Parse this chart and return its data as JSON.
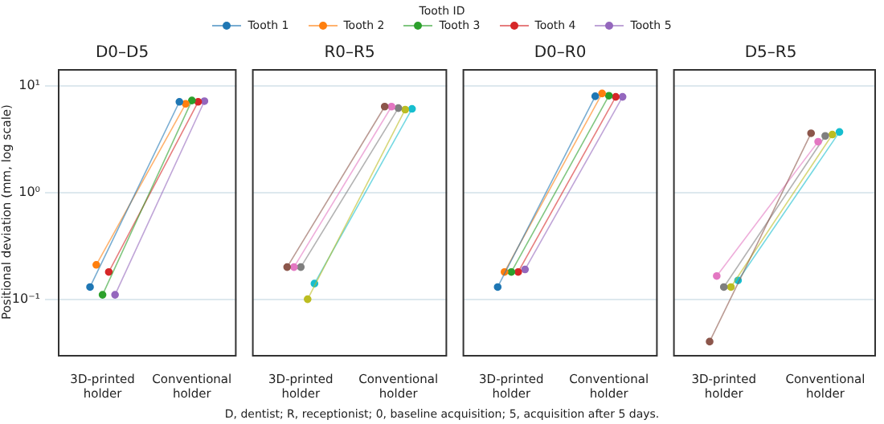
{
  "chart_data": [
    {
      "type": "line",
      "title": "D0–D5",
      "ylabel": "Positional deviation (mm, log scale)",
      "legend_title": "Tooth ID",
      "legend": "top",
      "marker": "circle",
      "log": "y",
      "grid": "y",
      "categories": [
        "3D-printed holder",
        "Conventional holder"
      ],
      "ylim": [
        0.03,
        14.4
      ],
      "yticks": [
        {
          "value": 0.1,
          "label": "10⁻¹"
        },
        {
          "value": 1,
          "label": "10⁰"
        },
        {
          "value": 10,
          "label": "10¹"
        }
      ],
      "annotations": [
        "D, dentist; R, receptionist; 0, baseline acquisition; 5, acquisition after 5 days."
      ],
      "series": [
        {
          "name": "Tooth 1",
          "color": "#1f77b4",
          "values": [
            0.13,
            7.1
          ]
        },
        {
          "name": "Tooth 2",
          "color": "#ff7f0e",
          "values": [
            0.21,
            6.8
          ]
        },
        {
          "name": "Tooth 3",
          "color": "#2ca02c",
          "values": [
            0.11,
            7.3
          ]
        },
        {
          "name": "Tooth 4",
          "color": "#d62728",
          "values": [
            0.18,
            7.1
          ]
        },
        {
          "name": "Tooth 5",
          "color": "#9467bd",
          "values": [
            0.11,
            7.2
          ]
        }
      ]
    },
    {
      "type": "line",
      "title": "R0–R5",
      "marker": "circle",
      "log": "y",
      "grid": "y",
      "tick_labels": "x",
      "categories": [
        "3D-printed holder",
        "Conventional holder"
      ],
      "ylim": [
        0.03,
        14.4
      ],
      "yticks": [
        0.1,
        1,
        10
      ],
      "series": [
        {
          "color": "#8c564b",
          "values": [
            0.2,
            6.4
          ]
        },
        {
          "color": "#e377c2",
          "values": [
            0.2,
            6.4
          ]
        },
        {
          "color": "#7f7f7f",
          "values": [
            0.2,
            6.2
          ]
        },
        {
          "color": "#bcbd22",
          "values": [
            0.1,
            6.0
          ]
        },
        {
          "color": "#17becf",
          "values": [
            0.14,
            6.1
          ]
        }
      ]
    },
    {
      "type": "line",
      "title": "D0–R0",
      "marker": "circle",
      "log": "y",
      "grid": "y",
      "tick_labels": "x",
      "categories": [
        "3D-printed holder",
        "Conventional holder"
      ],
      "ylim": [
        0.03,
        14.4
      ],
      "yticks": [
        0.1,
        1,
        10
      ],
      "series": [
        {
          "color": "#1f77b4",
          "values": [
            0.13,
            8.0
          ]
        },
        {
          "color": "#ff7f0e",
          "values": [
            0.18,
            8.5
          ]
        },
        {
          "color": "#2ca02c",
          "values": [
            0.18,
            8.1
          ]
        },
        {
          "color": "#d62728",
          "values": [
            0.18,
            7.9
          ]
        },
        {
          "color": "#9467bd",
          "values": [
            0.19,
            7.9
          ]
        }
      ]
    },
    {
      "type": "line",
      "title": "D5–R5",
      "marker": "circle",
      "log": "y",
      "grid": "y",
      "tick_labels": "x",
      "categories": [
        "3D-printed holder",
        "Conventional holder"
      ],
      "ylim": [
        0.03,
        14.4
      ],
      "yticks": [
        0.1,
        1,
        10
      ],
      "series": [
        {
          "color": "#8c564b",
          "values": [
            0.04,
            3.6
          ]
        },
        {
          "color": "#e377c2",
          "values": [
            0.165,
            3.0
          ]
        },
        {
          "color": "#7f7f7f",
          "values": [
            0.13,
            3.4
          ]
        },
        {
          "color": "#bcbd22",
          "values": [
            0.13,
            3.5
          ]
        },
        {
          "color": "#17becf",
          "values": [
            0.15,
            3.7
          ]
        }
      ]
    }
  ]
}
